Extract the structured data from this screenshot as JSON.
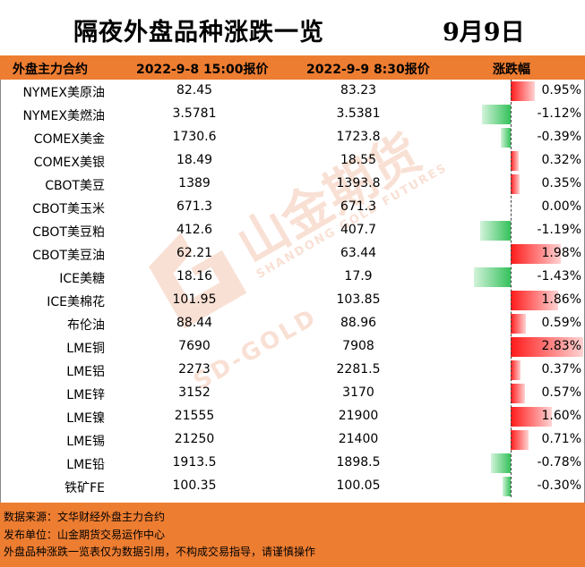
{
  "title": "隔夜外盘品种涨跌一览",
  "date": "9月9日",
  "headers": {
    "contract": "外盘主力合约",
    "prev_price": "2022-9-8 15:00报价",
    "curr_price": "2022-9-9 8:30报价",
    "change": "涨跌幅"
  },
  "colors": {
    "up": "#ff1a1a",
    "down": "#35c15b",
    "accent": "#ed7d31"
  },
  "rows": [
    {
      "name": "NYMEX美原油",
      "prev": "82.45",
      "curr": "83.23",
      "change": "0.95%",
      "value": 0.95
    },
    {
      "name": "NYMEX美燃油",
      "prev": "3.5781",
      "curr": "3.5381",
      "change": "-1.12%",
      "value": -1.12
    },
    {
      "name": "COMEX美金",
      "prev": "1730.6",
      "curr": "1723.8",
      "change": "-0.39%",
      "value": -0.39
    },
    {
      "name": "COMEX美银",
      "prev": "18.49",
      "curr": "18.55",
      "change": "0.32%",
      "value": 0.32
    },
    {
      "name": "CBOT美豆",
      "prev": "1389",
      "curr": "1393.8",
      "change": "0.35%",
      "value": 0.35
    },
    {
      "name": "CBOT美玉米",
      "prev": "671.3",
      "curr": "671.3",
      "change": "0.00%",
      "value": 0.0
    },
    {
      "name": "CBOT美豆粕",
      "prev": "412.6",
      "curr": "407.7",
      "change": "-1.19%",
      "value": -1.19
    },
    {
      "name": "CBOT美豆油",
      "prev": "62.21",
      "curr": "63.44",
      "change": "1.98%",
      "value": 1.98
    },
    {
      "name": "ICE美糖",
      "prev": "18.16",
      "curr": "17.9",
      "change": "-1.43%",
      "value": -1.43
    },
    {
      "name": "ICE美棉花",
      "prev": "101.95",
      "curr": "103.85",
      "change": "1.86%",
      "value": 1.86
    },
    {
      "name": "布伦油",
      "prev": "88.44",
      "curr": "88.96",
      "change": "0.59%",
      "value": 0.59
    },
    {
      "name": "LME铜",
      "prev": "7690",
      "curr": "7908",
      "change": "2.83%",
      "value": 2.83
    },
    {
      "name": "LME铝",
      "prev": "2273",
      "curr": "2281.5",
      "change": "0.37%",
      "value": 0.37
    },
    {
      "name": "LME锌",
      "prev": "3152",
      "curr": "3170",
      "change": "0.57%",
      "value": 0.57
    },
    {
      "name": "LME镍",
      "prev": "21555",
      "curr": "21900",
      "change": "1.60%",
      "value": 1.6
    },
    {
      "name": "LME锡",
      "prev": "21250",
      "curr": "21400",
      "change": "0.71%",
      "value": 0.71
    },
    {
      "name": "LME铅",
      "prev": "1913.5",
      "curr": "1898.5",
      "change": "-0.78%",
      "value": -0.78
    },
    {
      "name": "铁矿FE",
      "prev": "100.35",
      "curr": "100.05",
      "change": "-0.30%",
      "value": -0.3
    }
  ],
  "watermark": {
    "brand": "山金期货",
    "brand_en": "SHANDONG GOLD FUTURES",
    "sub": "SD-GOLD"
  },
  "footer": {
    "source": "数据来源：文华财经外盘主力合约",
    "publisher": "发布单位：山金期货交易运作中心",
    "disclaimer": "外盘品种涨跌一览表仅为数据引用，不构成交易指导，请谨慎操作"
  }
}
